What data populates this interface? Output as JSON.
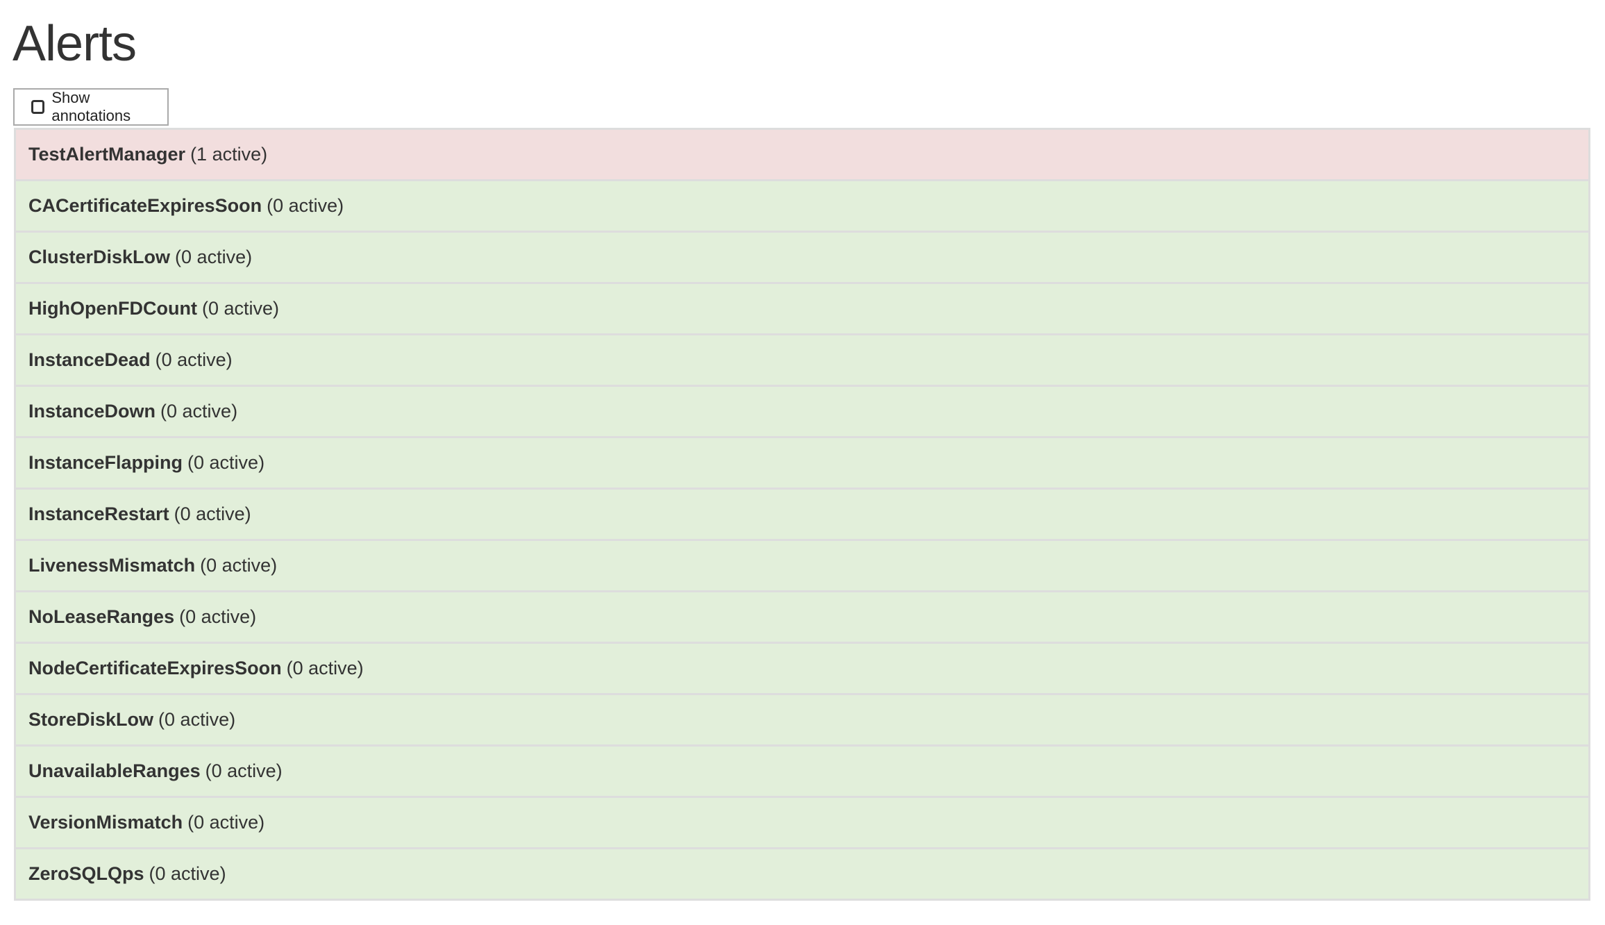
{
  "title": "Alerts",
  "toggle": {
    "label": "Show annotations",
    "checked": false,
    "icon": "checkbox-icon"
  },
  "colors": {
    "firing": "#f2dede",
    "inactive": "#e2efda",
    "border": "#dddddd"
  },
  "alerts": [
    {
      "name": "TestAlertManager",
      "count": "(1 active)",
      "state": "firing"
    },
    {
      "name": "CACertificateExpiresSoon",
      "count": "(0 active)",
      "state": "ok"
    },
    {
      "name": "ClusterDiskLow",
      "count": "(0 active)",
      "state": "ok"
    },
    {
      "name": "HighOpenFDCount",
      "count": "(0 active)",
      "state": "ok"
    },
    {
      "name": "InstanceDead",
      "count": "(0 active)",
      "state": "ok"
    },
    {
      "name": "InstanceDown",
      "count": "(0 active)",
      "state": "ok"
    },
    {
      "name": "InstanceFlapping",
      "count": "(0 active)",
      "state": "ok"
    },
    {
      "name": "InstanceRestart",
      "count": "(0 active)",
      "state": "ok"
    },
    {
      "name": "LivenessMismatch",
      "count": "(0 active)",
      "state": "ok"
    },
    {
      "name": "NoLeaseRanges",
      "count": "(0 active)",
      "state": "ok"
    },
    {
      "name": "NodeCertificateExpiresSoon",
      "count": "(0 active)",
      "state": "ok"
    },
    {
      "name": "StoreDiskLow",
      "count": "(0 active)",
      "state": "ok"
    },
    {
      "name": "UnavailableRanges",
      "count": "(0 active)",
      "state": "ok"
    },
    {
      "name": "VersionMismatch",
      "count": "(0 active)",
      "state": "ok"
    },
    {
      "name": "ZeroSQLQps",
      "count": "(0 active)",
      "state": "ok"
    }
  ]
}
